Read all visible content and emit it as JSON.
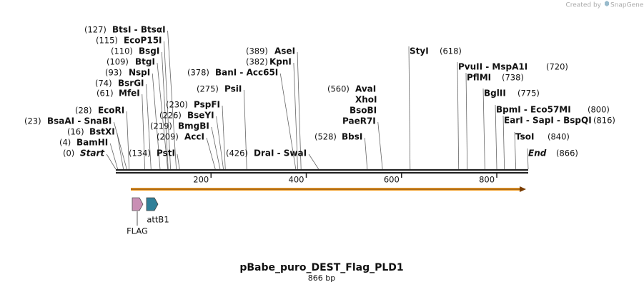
{
  "credit": {
    "prefix": "Created by",
    "brand": "SnapGene"
  },
  "title": "pBabe_puro_DEST_Flag_PLD1",
  "length": {
    "value": 866,
    "label": "866 bp"
  },
  "ruler_ticks": [
    200,
    400,
    600,
    800
  ],
  "sites": [
    {
      "pos": {
        "value": 127,
        "label": "(127)"
      },
      "label": "BtsI  -  BtsαI"
    },
    {
      "pos": {
        "value": 115,
        "label": "(115)"
      },
      "label": "EcoP15I"
    },
    {
      "pos": {
        "value": 110,
        "label": "(110)"
      },
      "label": "BsgI"
    },
    {
      "pos": {
        "value": 109,
        "label": "(109)"
      },
      "label": "BtgI"
    },
    {
      "pos": {
        "value": 93,
        "label": "(93)"
      },
      "label": "NspI"
    },
    {
      "pos": {
        "value": 74,
        "label": "(74)"
      },
      "label": "BsrGI"
    },
    {
      "pos": {
        "value": 61,
        "label": "(61)"
      },
      "label": "MfeI"
    },
    {
      "pos": {
        "value": 28,
        "label": "(28)"
      },
      "label": "EcoRI"
    },
    {
      "pos": {
        "value": 23,
        "label": "(23)"
      },
      "label": "BsaAI  -  SnaBI"
    },
    {
      "pos": {
        "value": 16,
        "label": "(16)"
      },
      "label": "BstXI"
    },
    {
      "pos": {
        "value": 4,
        "label": "(4)"
      },
      "label": "BamHI"
    },
    {
      "pos": {
        "value": 0,
        "label": "(0)"
      },
      "label": "Start"
    },
    {
      "pos": {
        "value": 134,
        "label": "(134)"
      },
      "label": "PstI"
    },
    {
      "pos": {
        "value": 209,
        "label": "(209)"
      },
      "label": "AccI"
    },
    {
      "pos": {
        "value": 219,
        "label": "(219)"
      },
      "label": "BmgBI"
    },
    {
      "pos": {
        "value": 226,
        "label": "(226)"
      },
      "label": "BseYI"
    },
    {
      "pos": {
        "value": 230,
        "label": "(230)"
      },
      "label": "PspFI"
    },
    {
      "pos": {
        "value": 275,
        "label": "(275)"
      },
      "label": "PsiI"
    },
    {
      "pos": {
        "value": 378,
        "label": "(378)"
      },
      "label": "BanI  -  Acc65I"
    },
    {
      "pos": {
        "value": 382,
        "label": "(382)"
      },
      "label": "KpnI"
    },
    {
      "pos": {
        "value": 389,
        "label": "(389)"
      },
      "label": "AseI"
    },
    {
      "pos": {
        "value": 426,
        "label": "(426)"
      },
      "label": "DraI  -  SwaI"
    },
    {
      "pos": {
        "value": 528,
        "label": "(528)"
      },
      "label": "BbsI"
    },
    {
      "pos": {
        "value": 560,
        "label": "(560)"
      },
      "label": "AvaI"
    },
    {
      "label": "XhoI"
    },
    {
      "label": "BsoBI"
    },
    {
      "label": "PaeR7I"
    },
    {
      "pos": {
        "value": 618,
        "label": "(618)"
      },
      "label": "StyI"
    },
    {
      "pos": {
        "value": 720,
        "label": "(720)"
      },
      "label": "PvuII  -  MspA1I"
    },
    {
      "pos": {
        "value": 738,
        "label": "(738)"
      },
      "label": "PflMI"
    },
    {
      "pos": {
        "value": 775,
        "label": "(775)"
      },
      "label": "BglII"
    },
    {
      "pos": {
        "value": 800,
        "label": "(800)"
      },
      "label": "BpmI  -  Eco57MI"
    },
    {
      "pos": {
        "value": 816,
        "label": "(816)"
      },
      "label": "EarI  -  SapI  -  BspQI"
    },
    {
      "pos": {
        "value": 840,
        "label": "(840)"
      },
      "label": "TsoI"
    },
    {
      "pos": {
        "value": 866,
        "label": "(866)"
      },
      "label": "End"
    }
  ],
  "features": [
    {
      "label": "FLAG"
    },
    {
      "label": "attB1"
    }
  ]
}
